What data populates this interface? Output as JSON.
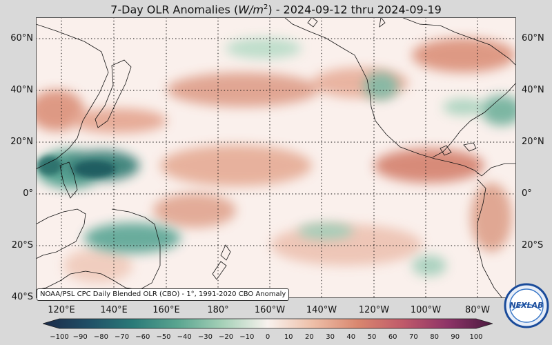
{
  "title": {
    "prefix": "7-Day OLR Anomalies (",
    "unit_base": "W/m",
    "unit_exp": "2",
    "suffix": ") - 2024-09-12 thru 2024-09-19"
  },
  "credit": "NOAA/PSL CPC Daily Blended OLR (CBO) - 1°, 1991-2020 CBO Anomaly",
  "lat_labels": [
    "60°N",
    "40°N",
    "20°N",
    "0°",
    "20°S",
    "40°S"
  ],
  "lon_labels": [
    "120°E",
    "140°E",
    "160°E",
    "180°",
    "160°W",
    "140°W",
    "120°W",
    "100°W",
    "80°W"
  ],
  "colorbar_ticks": [
    "−100",
    "−90",
    "−80",
    "−70",
    "−60",
    "−50",
    "−40",
    "−30",
    "−20",
    "−10",
    "0",
    "10",
    "20",
    "30",
    "40",
    "50",
    "60",
    "70",
    "80",
    "90",
    "100"
  ],
  "colors": {
    "negative_strong": "#1f3d4d",
    "negative_mid": "#3f8f80",
    "neutral": "#faf3ef",
    "positive_mid": "#d9876f",
    "positive_strong": "#5a1f4a"
  },
  "logo_text": "NEXLAB"
}
